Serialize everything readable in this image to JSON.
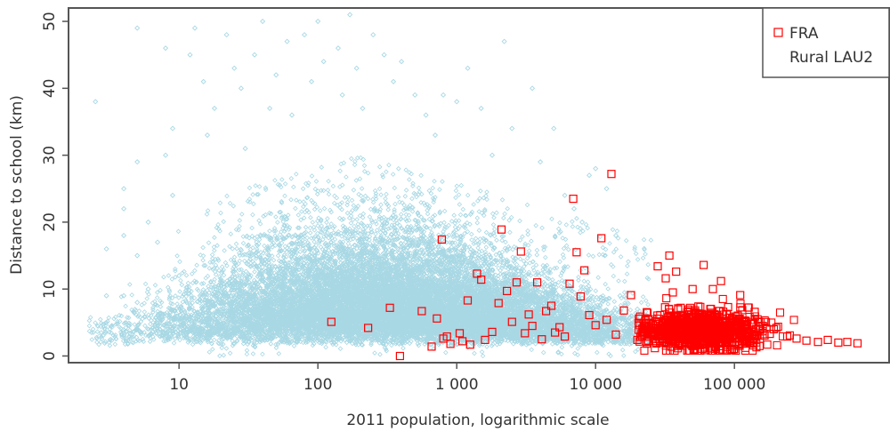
{
  "chart_data": {
    "type": "scatter",
    "title": "",
    "xlabel": "2011 population, logarithmic scale",
    "ylabel": "Distance to school (km)",
    "x_scale": "log",
    "xlim": [
      1.6,
      1300000
    ],
    "ylim": [
      -1,
      52
    ],
    "x_ticks": [
      {
        "value": 10,
        "label": "10"
      },
      {
        "value": 100,
        "label": "100"
      },
      {
        "value": 1000,
        "label": "1 000"
      },
      {
        "value": 10000,
        "label": "10 000"
      },
      {
        "value": 100000,
        "label": "100 000"
      }
    ],
    "y_ticks": [
      0,
      10,
      20,
      30,
      40,
      50
    ],
    "grid": false,
    "legend": {
      "position": "top-right",
      "entries": [
        {
          "label": "FRA",
          "marker": "square",
          "color": "#ff0000"
        },
        {
          "label": "Rural LAU2",
          "marker": "none"
        }
      ]
    },
    "series": [
      {
        "name": "Rural LAU2",
        "color": "#a8d8e4",
        "marker": "diamond",
        "cloud": {
          "summary": "dense cloud of several thousand municipalities; mass between population 20 and 20 000, distances mostly 0-20 km, sparse points up to about 50 km",
          "points": [
            [
              2.5,
              38
            ],
            [
              3,
              16
            ],
            [
              3,
              9
            ],
            [
              3,
              5
            ],
            [
              4,
              25
            ],
            [
              4,
              22
            ],
            [
              4,
              18
            ],
            [
              4,
              9
            ],
            [
              4,
              3
            ],
            [
              5,
              49
            ],
            [
              5,
              29
            ],
            [
              5,
              15
            ],
            [
              5,
              8
            ],
            [
              5,
              4
            ],
            [
              6,
              10
            ],
            [
              6,
              20
            ],
            [
              7,
              17
            ],
            [
              7,
              6
            ],
            [
              8,
              46
            ],
            [
              8,
              30
            ],
            [
              9,
              34
            ],
            [
              9,
              24
            ],
            [
              10,
              12
            ],
            [
              12,
              45
            ],
            [
              13,
              49
            ],
            [
              15,
              41
            ],
            [
              16,
              33
            ],
            [
              18,
              37
            ],
            [
              22,
              48
            ],
            [
              25,
              43
            ],
            [
              28,
              40
            ],
            [
              30,
              31
            ],
            [
              35,
              45
            ],
            [
              40,
              50
            ],
            [
              45,
              37
            ],
            [
              50,
              42
            ],
            [
              55,
              52
            ],
            [
              60,
              47
            ],
            [
              65,
              36
            ],
            [
              70,
              52
            ],
            [
              80,
              48
            ],
            [
              90,
              41
            ],
            [
              100,
              50
            ],
            [
              110,
              44
            ],
            [
              120,
              52
            ],
            [
              140,
              46
            ],
            [
              150,
              39
            ],
            [
              170,
              51
            ],
            [
              190,
              43
            ],
            [
              210,
              37
            ],
            [
              250,
              48
            ],
            [
              300,
              45
            ],
            [
              350,
              41
            ],
            [
              400,
              44
            ],
            [
              500,
              39
            ],
            [
              600,
              36
            ],
            [
              700,
              33
            ],
            [
              800,
              39
            ],
            [
              1000,
              38
            ],
            [
              1200,
              43
            ],
            [
              1500,
              37
            ],
            [
              1800,
              30
            ],
            [
              2200,
              47
            ],
            [
              2500,
              34
            ],
            [
              3500,
              40
            ],
            [
              4000,
              29
            ],
            [
              5000,
              34
            ],
            [
              6000,
              24
            ],
            [
              7000,
              22
            ],
            [
              8000,
              20
            ],
            [
              9000,
              27
            ],
            [
              10000,
              28
            ],
            [
              12000,
              25
            ],
            [
              14000,
              18
            ],
            [
              15000,
              9
            ],
            [
              18000,
              6
            ],
            [
              20000,
              7
            ],
            [
              25000,
              4
            ],
            [
              30000,
              2
            ]
          ]
        }
      },
      {
        "name": "FRA",
        "color": "#ff0000",
        "marker": "square",
        "points": [
          [
            125,
            5.1
          ],
          [
            230,
            4.2
          ],
          [
            330,
            7.2
          ],
          [
            390,
            0
          ],
          [
            560,
            6.7
          ],
          [
            660,
            1.4
          ],
          [
            720,
            5.6
          ],
          [
            780,
            17.4
          ],
          [
            800,
            2.6
          ],
          [
            850,
            2.9
          ],
          [
            900,
            1.8
          ],
          [
            1050,
            3.4
          ],
          [
            1100,
            2.2
          ],
          [
            1200,
            8.3
          ],
          [
            1250,
            1.7
          ],
          [
            1400,
            12.3
          ],
          [
            1500,
            11.4
          ],
          [
            1600,
            2.4
          ],
          [
            1800,
            3.6
          ],
          [
            2000,
            7.9
          ],
          [
            2100,
            18.9
          ],
          [
            2300,
            9.7
          ],
          [
            2500,
            5.1
          ],
          [
            2700,
            11.0
          ],
          [
            2900,
            15.6
          ],
          [
            3100,
            3.4
          ],
          [
            3300,
            6.2
          ],
          [
            3500,
            4.5
          ],
          [
            3800,
            11.0
          ],
          [
            4100,
            2.5
          ],
          [
            4400,
            6.7
          ],
          [
            4800,
            7.5
          ],
          [
            5100,
            3.5
          ],
          [
            5500,
            4.3
          ],
          [
            6000,
            2.9
          ],
          [
            6500,
            10.8
          ],
          [
            6900,
            23.5
          ],
          [
            7300,
            15.5
          ],
          [
            7800,
            8.9
          ],
          [
            8300,
            12.8
          ],
          [
            9000,
            6.1
          ],
          [
            10000,
            4.6
          ],
          [
            11000,
            17.6
          ],
          [
            12000,
            5.4
          ],
          [
            13000,
            27.2
          ],
          [
            14000,
            3.2
          ],
          [
            16000,
            6.8
          ],
          [
            18000,
            9.1
          ],
          [
            20000,
            2.4
          ],
          [
            24000,
            5.5
          ],
          [
            28000,
            13.4
          ],
          [
            32000,
            11.6
          ],
          [
            34000,
            15.0
          ],
          [
            36000,
            9.5
          ],
          [
            38000,
            12.6
          ],
          [
            41000,
            7.2
          ],
          [
            45000,
            3.8
          ],
          [
            50000,
            10.0
          ],
          [
            55000,
            7.4
          ],
          [
            60000,
            13.6
          ],
          [
            65000,
            4.2
          ],
          [
            70000,
            10.0
          ],
          [
            75000,
            6.1
          ],
          [
            80000,
            11.2
          ],
          [
            90000,
            7.3
          ],
          [
            100000,
            3.7
          ],
          [
            110000,
            9.1
          ],
          [
            120000,
            5.2
          ],
          [
            140000,
            6.6
          ],
          [
            160000,
            4.5
          ],
          [
            180000,
            3.3
          ],
          [
            200000,
            4.2
          ],
          [
            240000,
            2.9
          ],
          [
            280000,
            2.6
          ],
          [
            330000,
            2.3
          ],
          [
            400000,
            2.1
          ],
          [
            470000,
            2.4
          ],
          [
            560000,
            2.0
          ],
          [
            650000,
            2.1
          ],
          [
            770000,
            1.9
          ]
        ],
        "cluster": {
          "summary": "dense cluster of red squares between population 20 000 and 300 000 at distances 1-8 km",
          "x_range": [
            20000,
            300000
          ],
          "y_range": [
            1,
            8
          ]
        }
      }
    ]
  }
}
